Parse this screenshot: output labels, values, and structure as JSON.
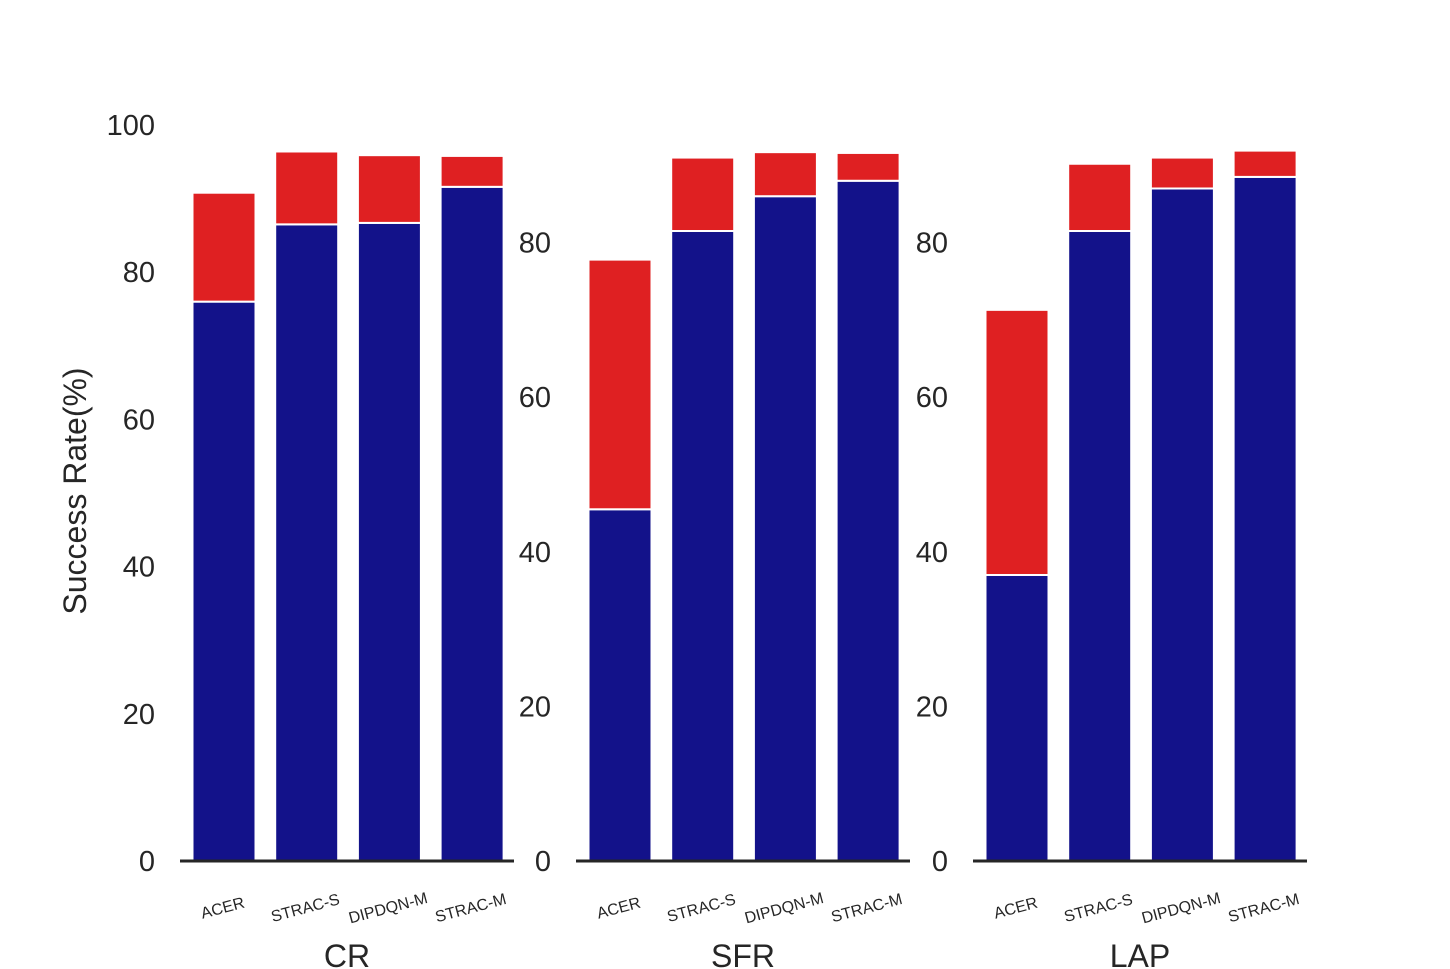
{
  "chart_data": [
    {
      "type": "bar",
      "stacked": true,
      "xlabel": "CR",
      "ylabel": "Success Rate(%)",
      "ylim": [
        0,
        100
      ],
      "yticks": [
        0,
        20,
        40,
        60,
        80,
        100
      ],
      "categories": [
        "ACER",
        "STRAC-S",
        "DIPDQN-M",
        "STRAC-M"
      ],
      "series": [
        {
          "color": "#13128a",
          "values": [
            76,
            86.5,
            86.7,
            91.6
          ]
        },
        {
          "color": "#df2022",
          "values": [
            14.8,
            9.9,
            9.2,
            4.2
          ]
        }
      ]
    },
    {
      "type": "bar",
      "stacked": true,
      "xlabel": "SFR",
      "ylim": [
        0,
        92
      ],
      "yticks": [
        0,
        20,
        40,
        60,
        80
      ],
      "categories": [
        "ACER",
        "STRAC-S",
        "DIPDQN-M",
        "STRAC-M"
      ],
      "series": [
        {
          "color": "#13128a",
          "values": [
            45.5,
            81.5,
            86,
            88
          ]
        },
        {
          "color": "#df2022",
          "values": [
            32.3,
            9.5,
            5.7,
            3.6
          ]
        }
      ]
    },
    {
      "type": "bar",
      "stacked": true,
      "xlabel": "LAP",
      "ylim": [
        0,
        92
      ],
      "yticks": [
        0,
        20,
        40,
        60,
        80
      ],
      "categories": [
        "ACER",
        "STRAC-S",
        "DIPDQN-M",
        "STRAC-M"
      ],
      "series": [
        {
          "color": "#13128a",
          "values": [
            37,
            81.5,
            87,
            88.5
          ]
        },
        {
          "color": "#df2022",
          "values": [
            34.3,
            8.7,
            4,
            3.4
          ]
        }
      ]
    }
  ]
}
